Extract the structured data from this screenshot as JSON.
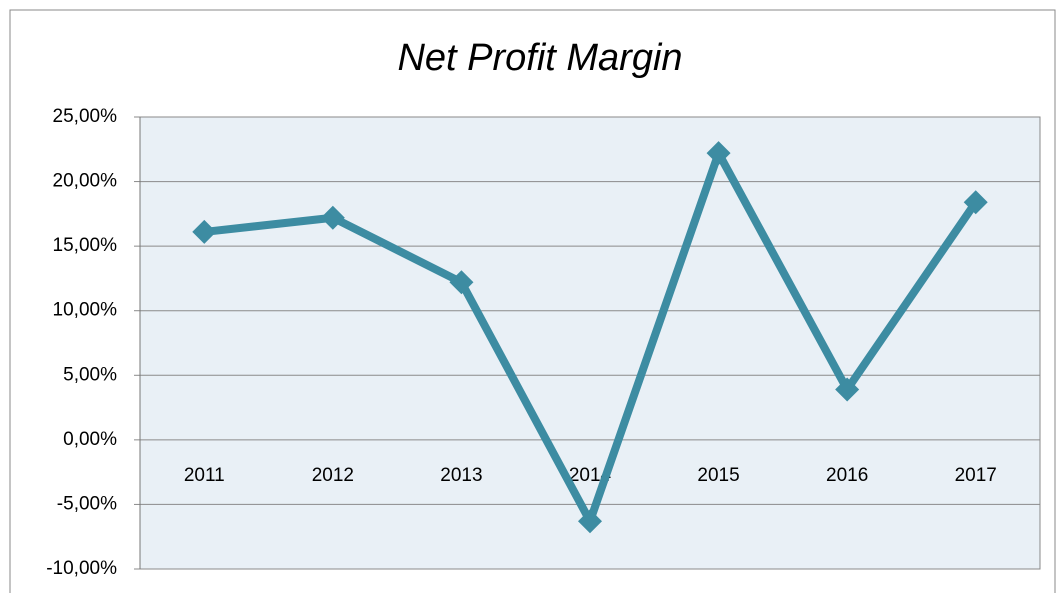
{
  "chart_data": {
    "type": "line",
    "title": "Net Profit Margin",
    "categories": [
      "2011",
      "2012",
      "2013",
      "2014",
      "2015",
      "2016",
      "2017"
    ],
    "series": [
      {
        "name": "Net Profit Margin",
        "color": "#3d8ca2",
        "values": [
          16.1,
          17.2,
          12.2,
          -6.3,
          22.2,
          3.9,
          18.4
        ]
      }
    ],
    "ylim": [
      -10,
      25
    ],
    "yticks": [
      {
        "value": -10,
        "label": "-10,00%"
      },
      {
        "value": -5,
        "label": "-5,00%"
      },
      {
        "value": 0,
        "label": "0,00%"
      },
      {
        "value": 5,
        "label": "5,00%"
      },
      {
        "value": 10,
        "label": "10,00%"
      },
      {
        "value": 15,
        "label": "15,00%"
      },
      {
        "value": 20,
        "label": "20,00%"
      },
      {
        "value": 25,
        "label": "25,00%"
      }
    ],
    "grid": true
  }
}
